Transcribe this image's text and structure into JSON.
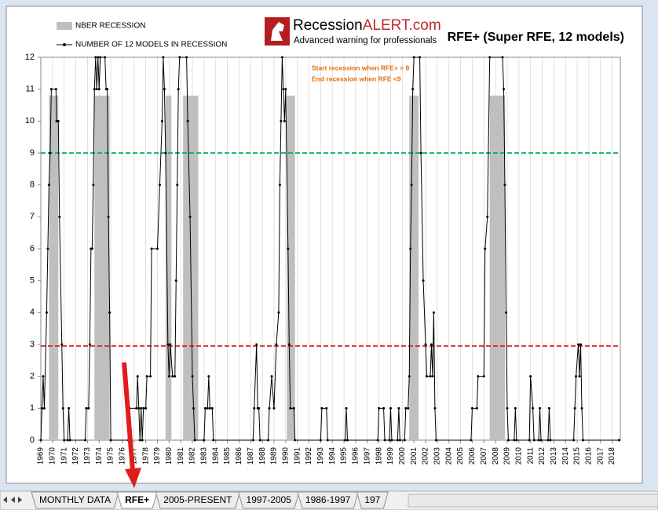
{
  "chart_data": {
    "type": "line",
    "title": "RFE+ (Super RFE, 12 models)",
    "annotations": [
      "Start recession when RFE+ > 8",
      "End recession when RFE <9"
    ],
    "xlim": [
      1969,
      2018.7
    ],
    "xticks": [
      1969,
      1970,
      1971,
      1972,
      1973,
      1974,
      1975,
      1976,
      1977,
      1978,
      1979,
      1980,
      1981,
      1982,
      1983,
      1984,
      1985,
      1986,
      1987,
      1988,
      1989,
      1990,
      1991,
      1992,
      1993,
      1994,
      1995,
      1996,
      1997,
      1998,
      1999,
      2000,
      2001,
      2002,
      2003,
      2004,
      2005,
      2006,
      2007,
      2008,
      2009,
      2010,
      2011,
      2012,
      2013,
      2014,
      2015,
      2016,
      2017,
      2018
    ],
    "ylim": [
      0,
      12
    ],
    "yticks": [
      0,
      1,
      2,
      3,
      4,
      5,
      6,
      7,
      8,
      9,
      10,
      11,
      12
    ],
    "grid": true,
    "recessions": {
      "name": "NBER RECESSION",
      "color": "#bfbfbf",
      "starts": [
        1969.7,
        1973.6,
        1979.7,
        1981.2,
        1990.1,
        2000.6,
        2007.5
      ],
      "ends": [
        1970.5,
        1974.9,
        1980.2,
        1982.5,
        1990.8,
        2001.4,
        2008.8
      ],
      "values": [
        10.8,
        10.8,
        10.8,
        10.8,
        10.8,
        10.8,
        10.8
      ]
    },
    "reference_lines": [
      {
        "value": 9,
        "color": "#00b050"
      },
      {
        "value": 2.95,
        "color": "#e02020"
      }
    ],
    "x": [
      1969.0,
      1969.1,
      1969.2,
      1969.3,
      1969.5,
      1969.6,
      1969.7,
      1969.8,
      1969.9,
      1970.3,
      1970.35,
      1970.5,
      1970.6,
      1970.8,
      1970.9,
      1971.0,
      1971.3,
      1971.4,
      1971.5,
      1972.8,
      1972.9,
      1973.1,
      1973.2,
      1973.3,
      1973.4,
      1973.5,
      1973.6,
      1973.7,
      1973.8,
      1973.9,
      1974.0,
      1974.1,
      1974.5,
      1974.6,
      1974.7,
      1974.8,
      1974.9,
      1975.0,
      1976.5,
      1976.6,
      1977.2,
      1977.3,
      1977.4,
      1977.5,
      1977.6,
      1977.7,
      1977.8,
      1978.0,
      1978.1,
      1978.4,
      1978.5,
      1979.0,
      1979.2,
      1979.4,
      1979.5,
      1979.6,
      1979.7,
      1979.9,
      1980.0,
      1980.1,
      1980.3,
      1980.5,
      1980.6,
      1980.7,
      1980.8,
      1980.9,
      1981.5,
      1981.6,
      1981.8,
      1982.0,
      1982.1,
      1982.2,
      1983.0,
      1983.1,
      1983.3,
      1983.4,
      1983.5,
      1983.7,
      1983.8,
      1987.2,
      1987.3,
      1987.5,
      1987.6,
      1987.7,
      1987.8,
      1988.5,
      1988.6,
      1988.8,
      1989.0,
      1989.2,
      1989.4,
      1989.5,
      1989.6,
      1989.7,
      1989.8,
      1989.9,
      1990.0,
      1990.2,
      1990.3,
      1990.4,
      1990.7,
      1990.8,
      1993.0,
      1993.1,
      1993.5,
      1993.6,
      1995.1,
      1995.2,
      1995.3,
      1997.9,
      1998.0,
      1998.4,
      1998.5,
      1998.9,
      1999.0,
      1999.1,
      1999.6,
      1999.7,
      1999.8,
      2000.2,
      2000.3,
      2000.5,
      2000.6,
      2000.7,
      2000.8,
      2000.9,
      2001.0,
      2001.5,
      2001.6,
      2001.8,
      2002.0,
      2002.1,
      2002.4,
      2002.5,
      2002.6,
      2002.7,
      2002.8,
      2002.9,
      2005.9,
      2006.0,
      2006.4,
      2006.5,
      2007.0,
      2007.1,
      2007.3,
      2007.5,
      2008.6,
      2008.7,
      2008.8,
      2008.9,
      2009.0,
      2009.1,
      2009.6,
      2009.7,
      2009.8,
      2010.9,
      2011.0,
      2011.2,
      2011.3,
      2011.7,
      2011.8,
      2011.9,
      2012.5,
      2012.6,
      2012.7,
      2014.7,
      2014.8,
      2014.9,
      2015.1,
      2015.2,
      2015.3,
      2015.4,
      2015.5,
      2018.6
    ],
    "series": [
      {
        "name": "NUMBER OF 12  MODELS IN RECESSION",
        "color": "#000000",
        "values": [
          0,
          1,
          2,
          1,
          4,
          6,
          8,
          9,
          11,
          11,
          10,
          10,
          7,
          3,
          1,
          0,
          0,
          1,
          0,
          0,
          1,
          1,
          3,
          6,
          6,
          8,
          11,
          12,
          11,
          12,
          11,
          12,
          12,
          11,
          11,
          7,
          4,
          0,
          0,
          1,
          1,
          2,
          1,
          0,
          1,
          0,
          1,
          1,
          2,
          2,
          6,
          6,
          8,
          10,
          12,
          11,
          9,
          3,
          2,
          3,
          2,
          2,
          5,
          8,
          11,
          12,
          12,
          10,
          7,
          2,
          1,
          0,
          0,
          1,
          1,
          2,
          1,
          1,
          0,
          0,
          1,
          3,
          1,
          1,
          0,
          0,
          1,
          2,
          1,
          3,
          4,
          8,
          10,
          12,
          11,
          10,
          11,
          6,
          3,
          1,
          1,
          0,
          0,
          1,
          1,
          0,
          0,
          1,
          0,
          0,
          1,
          1,
          0,
          0,
          1,
          0,
          0,
          1,
          0,
          0,
          1,
          1,
          2,
          6,
          8,
          11,
          12,
          12,
          9,
          5,
          3,
          2,
          2,
          3,
          2,
          4,
          1,
          0,
          0,
          1,
          1,
          2,
          2,
          6,
          7,
          12,
          12,
          11,
          8,
          4,
          1,
          0,
          0,
          1,
          0,
          0,
          2,
          1,
          0,
          0,
          1,
          0,
          0,
          1,
          0,
          0,
          1,
          2,
          3,
          2,
          3,
          1,
          0,
          0
        ]
      }
    ]
  },
  "logo": {
    "name_part1": "Recession",
    "name_part2": "ALERT.com",
    "tagline": "Advanced warning for professionals"
  },
  "sheet_tabs": [
    "MONTHLY DATA",
    "RFE+",
    "2005-PRESENT",
    "1997-2005",
    "1986-1997",
    "197"
  ]
}
